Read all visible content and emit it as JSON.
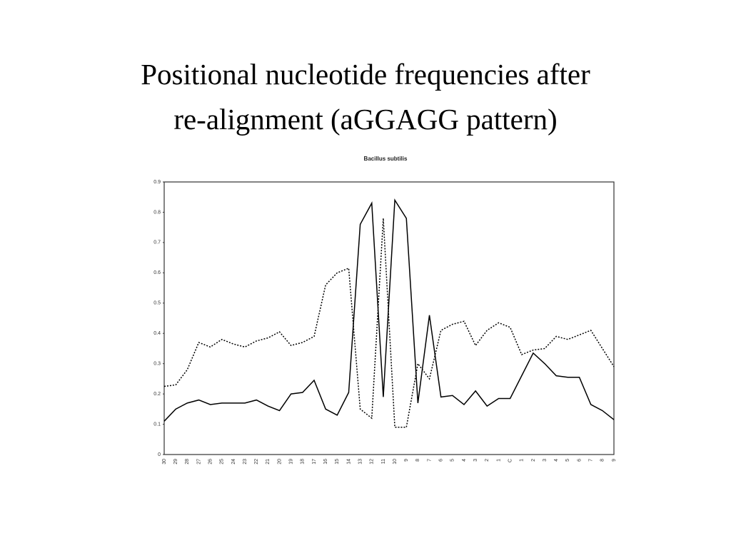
{
  "chart_data": {
    "type": "line",
    "title": [
      "Positional nucleotide frequencies after",
      "re-alignment (aGGAGG pattern)"
    ],
    "subtitle": "Bacillus subtilis",
    "categories": [
      "30",
      "29",
      "28",
      "27",
      "26",
      "25",
      "24",
      "23",
      "22",
      "21",
      "20",
      "19",
      "18",
      "17",
      "16",
      "15",
      "14",
      "13",
      "12",
      "11",
      "10",
      "9",
      "8",
      "7",
      "6",
      "5",
      "4",
      "3",
      "2",
      "1",
      "C",
      "1",
      "2",
      "3",
      "4",
      "5",
      "6",
      "7",
      "8",
      "9"
    ],
    "series": [
      {
        "color": "#000000",
        "style": "solid",
        "values": [
          0.11,
          0.15,
          0.17,
          0.18,
          0.165,
          0.17,
          0.17,
          0.17,
          0.18,
          0.16,
          0.145,
          0.2,
          0.205,
          0.245,
          0.15,
          0.13,
          0.205,
          0.76,
          0.83,
          0.19,
          0.84,
          0.78,
          0.17,
          0.46,
          0.19,
          0.195,
          0.165,
          0.21,
          0.16,
          0.185,
          0.185,
          0.26,
          0.335,
          0.3,
          0.26,
          0.255,
          0.255,
          0.165,
          0.145,
          0.115
        ]
      },
      {
        "color": "#000000",
        "style": "dotted",
        "values": [
          0.225,
          0.23,
          0.28,
          0.37,
          0.355,
          0.38,
          0.365,
          0.355,
          0.375,
          0.385,
          0.405,
          0.36,
          0.37,
          0.39,
          0.56,
          0.6,
          0.615,
          0.15,
          0.12,
          0.78,
          0.09,
          0.09,
          0.3,
          0.25,
          0.41,
          0.43,
          0.44,
          0.36,
          0.41,
          0.435,
          0.42,
          0.33,
          0.345,
          0.35,
          0.39,
          0.38,
          0.395,
          0.41,
          0.35,
          0.29
        ]
      }
    ],
    "ylim": [
      0,
      0.9
    ],
    "yticks": [
      0,
      0.1,
      0.2,
      0.3,
      0.4,
      0.5,
      0.6,
      0.7,
      0.8,
      0.9
    ]
  }
}
